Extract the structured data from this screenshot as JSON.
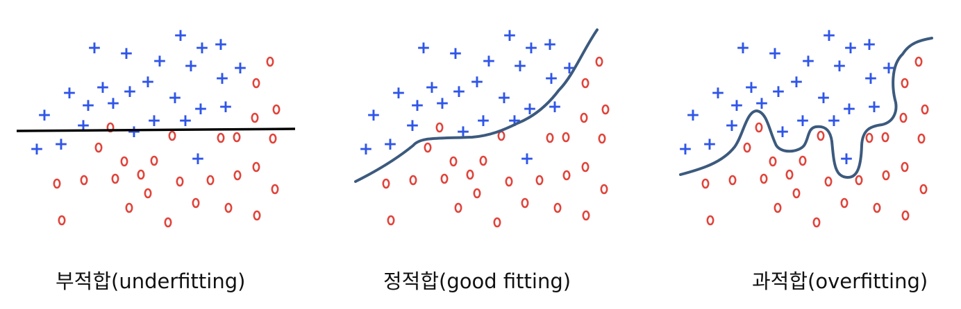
{
  "captions": {
    "underfitting": "부적합(underfitting)",
    "good_fitting": "정적합(good fitting)",
    "overfitting": "과적합(overfitting)"
  },
  "colors": {
    "plus": "#2f55e8",
    "circle": "#e0433a",
    "underfit_line": "#000000",
    "boundary_curve": "#3c5a7e"
  },
  "markers": {
    "plus_symbol": "+",
    "circle_symbol": "o"
  }
}
